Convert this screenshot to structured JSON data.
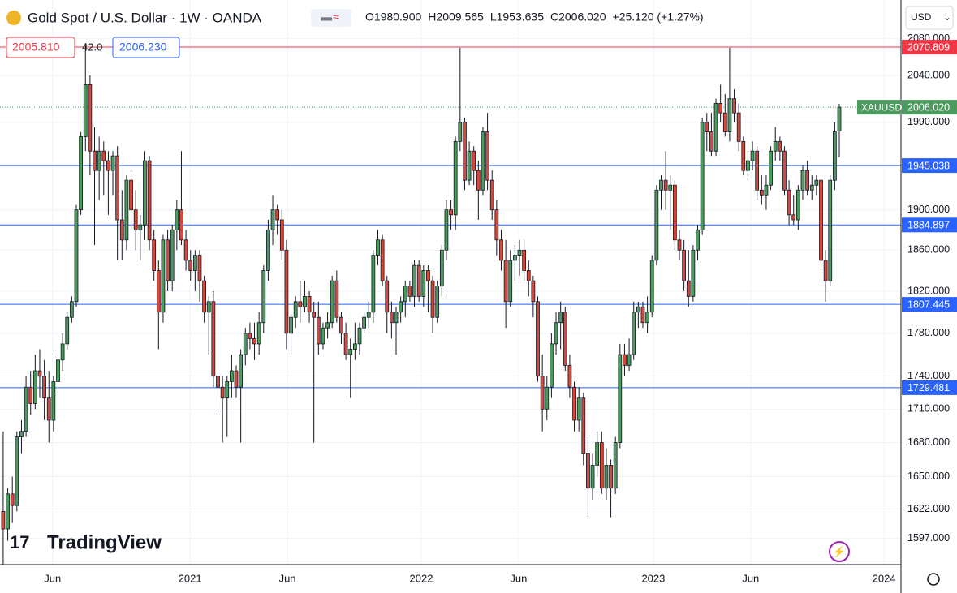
{
  "chart_data": {
    "type": "candlestick",
    "title": "Gold Spot / U.S. Dollar · 1W · OANDA",
    "ohlc_text": [
      "O1980.900",
      "H2009.565",
      "L1953.635",
      "C2006.020",
      "+25.120 (+1.27%)"
    ],
    "sell_price": "2005.810",
    "spread": "42.0",
    "buy_price": "2006.230",
    "currency": "USD",
    "brand": "TradingView",
    "symbol": "XAUUSD",
    "last_price": {
      "value": 2006.02,
      "label": "2006.020"
    },
    "log_scale": true,
    "grid": true,
    "up_color": "#4c9a5e",
    "down_color": "#d24a3e",
    "ylim": [
      1575,
      2123
    ],
    "yticks": [
      {
        "value": 1597,
        "label": "1597.000"
      },
      {
        "value": 1622,
        "label": "1622.000"
      },
      {
        "value": 1650,
        "label": "1650.000"
      },
      {
        "value": 1680,
        "label": "1680.000"
      },
      {
        "value": 1710,
        "label": "1710.000"
      },
      {
        "value": 1740,
        "label": "1740.000"
      },
      {
        "value": 1780,
        "label": "1780.000"
      },
      {
        "value": 1820,
        "label": "1820.000"
      },
      {
        "value": 1860,
        "label": "1860.000"
      },
      {
        "value": 1900,
        "label": "1900.000"
      },
      {
        "value": 1990,
        "label": "1990.000"
      },
      {
        "value": 2040,
        "label": "2040.000"
      },
      {
        "value": 2080,
        "label": "2080.000"
      }
    ],
    "xlim": [
      -0.7,
      196.5
    ],
    "xticks": [
      {
        "value": 10.8,
        "label": "Jun"
      },
      {
        "value": 40.9,
        "label": "2021"
      },
      {
        "value": 62.2,
        "label": "Jun"
      },
      {
        "value": 91.5,
        "label": "2022"
      },
      {
        "value": 112.8,
        "label": "Jun"
      },
      {
        "value": 142.3,
        "label": "2023"
      },
      {
        "value": 163.6,
        "label": "Jun"
      },
      {
        "value": 192.8,
        "label": "2024"
      }
    ],
    "hlines": [
      {
        "value": 2070.809,
        "label": "2070.809",
        "color": "#f23645"
      },
      {
        "value": 1945.038,
        "label": "1945.038",
        "color": "#2962ff"
      },
      {
        "value": 1884.897,
        "label": "1884.897",
        "color": "#2962ff"
      },
      {
        "value": 1807.445,
        "label": "1807.445",
        "color": "#2962ff"
      },
      {
        "value": 1729.481,
        "label": "1729.481",
        "color": "#2962ff"
      }
    ],
    "candles": [
      [
        1620,
        1690,
        1575,
        1605
      ],
      [
        1605,
        1640,
        1595,
        1635
      ],
      [
        1635,
        1650,
        1610,
        1625
      ],
      [
        1625,
        1690,
        1620,
        1685
      ],
      [
        1685,
        1700,
        1670,
        1690
      ],
      [
        1690,
        1740,
        1685,
        1730
      ],
      [
        1730,
        1745,
        1705,
        1715
      ],
      [
        1715,
        1760,
        1710,
        1745
      ],
      [
        1745,
        1765,
        1720,
        1740
      ],
      [
        1740,
        1755,
        1700,
        1720
      ],
      [
        1720,
        1745,
        1680,
        1700
      ],
      [
        1700,
        1740,
        1690,
        1735
      ],
      [
        1735,
        1760,
        1725,
        1755
      ],
      [
        1755,
        1780,
        1745,
        1770
      ],
      [
        1770,
        1800,
        1765,
        1795
      ],
      [
        1795,
        1815,
        1790,
        1810
      ],
      [
        1810,
        1905,
        1805,
        1900
      ],
      [
        1900,
        1980,
        1895,
        1975
      ],
      [
        1975,
        2075,
        1960,
        2030
      ],
      [
        2030,
        2040,
        1935,
        1960
      ],
      [
        1960,
        1985,
        1865,
        1940
      ],
      [
        1940,
        1975,
        1910,
        1960
      ],
      [
        1960,
        1970,
        1915,
        1950
      ],
      [
        1950,
        1960,
        1895,
        1940
      ],
      [
        1940,
        1960,
        1915,
        1955
      ],
      [
        1955,
        1965,
        1850,
        1890
      ],
      [
        1890,
        1920,
        1850,
        1870
      ],
      [
        1870,
        1935,
        1860,
        1930
      ],
      [
        1930,
        1940,
        1880,
        1900
      ],
      [
        1900,
        1920,
        1860,
        1880
      ],
      [
        1880,
        1895,
        1850,
        1885
      ],
      [
        1885,
        1960,
        1870,
        1950
      ],
      [
        1950,
        1955,
        1860,
        1870
      ],
      [
        1870,
        1880,
        1830,
        1840
      ],
      [
        1840,
        1850,
        1765,
        1800
      ],
      [
        1800,
        1875,
        1790,
        1870
      ],
      [
        1870,
        1880,
        1820,
        1830
      ],
      [
        1830,
        1885,
        1820,
        1880
      ],
      [
        1880,
        1910,
        1860,
        1900
      ],
      [
        1900,
        1960,
        1865,
        1870
      ],
      [
        1870,
        1880,
        1840,
        1850
      ],
      [
        1850,
        1860,
        1830,
        1840
      ],
      [
        1840,
        1860,
        1820,
        1855
      ],
      [
        1855,
        1860,
        1810,
        1830
      ],
      [
        1830,
        1835,
        1790,
        1800
      ],
      [
        1800,
        1815,
        1760,
        1810
      ],
      [
        1810,
        1820,
        1730,
        1740
      ],
      [
        1740,
        1745,
        1705,
        1730
      ],
      [
        1730,
        1740,
        1680,
        1720
      ],
      [
        1720,
        1740,
        1685,
        1735
      ],
      [
        1735,
        1760,
        1720,
        1745
      ],
      [
        1745,
        1750,
        1720,
        1730
      ],
      [
        1730,
        1765,
        1680,
        1760
      ],
      [
        1760,
        1785,
        1750,
        1780
      ],
      [
        1780,
        1790,
        1765,
        1775
      ],
      [
        1775,
        1790,
        1755,
        1770
      ],
      [
        1770,
        1800,
        1760,
        1790
      ],
      [
        1790,
        1845,
        1780,
        1840
      ],
      [
        1840,
        1890,
        1830,
        1880
      ],
      [
        1880,
        1915,
        1865,
        1900
      ],
      [
        1900,
        1905,
        1875,
        1890
      ],
      [
        1890,
        1900,
        1850,
        1860
      ],
      [
        1860,
        1870,
        1765,
        1780
      ],
      [
        1780,
        1800,
        1760,
        1795
      ],
      [
        1795,
        1815,
        1785,
        1810
      ],
      [
        1810,
        1830,
        1790,
        1805
      ],
      [
        1805,
        1830,
        1800,
        1815
      ],
      [
        1815,
        1820,
        1790,
        1800
      ],
      [
        1800,
        1810,
        1680,
        1795
      ],
      [
        1795,
        1810,
        1760,
        1770
      ],
      [
        1770,
        1790,
        1765,
        1785
      ],
      [
        1785,
        1800,
        1775,
        1790
      ],
      [
        1790,
        1835,
        1785,
        1830
      ],
      [
        1830,
        1840,
        1790,
        1795
      ],
      [
        1795,
        1800,
        1770,
        1780
      ],
      [
        1780,
        1790,
        1755,
        1760
      ],
      [
        1760,
        1775,
        1720,
        1765
      ],
      [
        1765,
        1790,
        1755,
        1770
      ],
      [
        1770,
        1790,
        1760,
        1785
      ],
      [
        1785,
        1800,
        1780,
        1795
      ],
      [
        1795,
        1810,
        1785,
        1800
      ],
      [
        1800,
        1860,
        1790,
        1855
      ],
      [
        1855,
        1880,
        1845,
        1870
      ],
      [
        1870,
        1875,
        1825,
        1830
      ],
      [
        1830,
        1835,
        1780,
        1800
      ],
      [
        1800,
        1810,
        1775,
        1790
      ],
      [
        1790,
        1805,
        1760,
        1800
      ],
      [
        1800,
        1815,
        1790,
        1810
      ],
      [
        1810,
        1830,
        1795,
        1825
      ],
      [
        1825,
        1830,
        1810,
        1815
      ],
      [
        1815,
        1850,
        1805,
        1845
      ],
      [
        1845,
        1850,
        1810,
        1815
      ],
      [
        1815,
        1845,
        1805,
        1840
      ],
      [
        1840,
        1845,
        1800,
        1830
      ],
      [
        1830,
        1835,
        1780,
        1795
      ],
      [
        1795,
        1830,
        1790,
        1825
      ],
      [
        1825,
        1865,
        1815,
        1860
      ],
      [
        1860,
        1910,
        1850,
        1900
      ],
      [
        1900,
        1910,
        1880,
        1895
      ],
      [
        1895,
        1975,
        1880,
        1970
      ],
      [
        1970,
        2070,
        1960,
        1990
      ],
      [
        1990,
        1995,
        1920,
        1930
      ],
      [
        1930,
        1970,
        1925,
        1960
      ],
      [
        1960,
        1965,
        1925,
        1940
      ],
      [
        1940,
        1950,
        1890,
        1920
      ],
      [
        1920,
        1985,
        1915,
        1980
      ],
      [
        1980,
        2000,
        1920,
        1930
      ],
      [
        1930,
        1940,
        1890,
        1900
      ],
      [
        1900,
        1910,
        1855,
        1870
      ],
      [
        1870,
        1880,
        1840,
        1850
      ],
      [
        1850,
        1870,
        1785,
        1810
      ],
      [
        1810,
        1860,
        1805,
        1850
      ],
      [
        1850,
        1865,
        1830,
        1855
      ],
      [
        1855,
        1870,
        1835,
        1860
      ],
      [
        1860,
        1870,
        1830,
        1840
      ],
      [
        1840,
        1850,
        1815,
        1830
      ],
      [
        1830,
        1835,
        1795,
        1810
      ],
      [
        1810,
        1815,
        1735,
        1740
      ],
      [
        1740,
        1760,
        1690,
        1710
      ],
      [
        1710,
        1740,
        1700,
        1730
      ],
      [
        1730,
        1780,
        1720,
        1770
      ],
      [
        1770,
        1800,
        1760,
        1790
      ],
      [
        1790,
        1810,
        1765,
        1800
      ],
      [
        1800,
        1805,
        1745,
        1750
      ],
      [
        1750,
        1760,
        1720,
        1730
      ],
      [
        1730,
        1735,
        1690,
        1700
      ],
      [
        1700,
        1730,
        1690,
        1720
      ],
      [
        1720,
        1725,
        1660,
        1670
      ],
      [
        1670,
        1685,
        1615,
        1640
      ],
      [
        1640,
        1670,
        1630,
        1660
      ],
      [
        1660,
        1690,
        1650,
        1680
      ],
      [
        1680,
        1690,
        1635,
        1640
      ],
      [
        1640,
        1675,
        1630,
        1660
      ],
      [
        1660,
        1665,
        1615,
        1640
      ],
      [
        1640,
        1685,
        1635,
        1680
      ],
      [
        1680,
        1770,
        1675,
        1760
      ],
      [
        1760,
        1770,
        1740,
        1750
      ],
      [
        1750,
        1775,
        1745,
        1760
      ],
      [
        1760,
        1810,
        1755,
        1800
      ],
      [
        1800,
        1810,
        1785,
        1805
      ],
      [
        1805,
        1810,
        1785,
        1790
      ],
      [
        1790,
        1815,
        1780,
        1800
      ],
      [
        1800,
        1855,
        1795,
        1850
      ],
      [
        1850,
        1925,
        1845,
        1920
      ],
      [
        1920,
        1935,
        1900,
        1930
      ],
      [
        1930,
        1960,
        1900,
        1920
      ],
      [
        1920,
        1935,
        1880,
        1925
      ],
      [
        1925,
        1930,
        1860,
        1870
      ],
      [
        1870,
        1880,
        1850,
        1860
      ],
      [
        1860,
        1870,
        1820,
        1830
      ],
      [
        1830,
        1860,
        1805,
        1815
      ],
      [
        1815,
        1865,
        1810,
        1860
      ],
      [
        1860,
        1885,
        1850,
        1880
      ],
      [
        1880,
        1995,
        1875,
        1990
      ],
      [
        1990,
        2000,
        1960,
        1980
      ],
      [
        1980,
        2000,
        1955,
        1960
      ],
      [
        1960,
        2015,
        1955,
        2010
      ],
      [
        2010,
        2030,
        1990,
        2000
      ],
      [
        2000,
        2020,
        1975,
        1980
      ],
      [
        1980,
        2070,
        1970,
        2015
      ],
      [
        2015,
        2025,
        1990,
        2000
      ],
      [
        2000,
        2010,
        1960,
        1970
      ],
      [
        1970,
        1975,
        1935,
        1940
      ],
      [
        1940,
        1960,
        1930,
        1950
      ],
      [
        1950,
        1970,
        1940,
        1960
      ],
      [
        1960,
        1965,
        1910,
        1920
      ],
      [
        1920,
        1935,
        1905,
        1915
      ],
      [
        1915,
        1935,
        1900,
        1925
      ],
      [
        1925,
        1965,
        1920,
        1960
      ],
      [
        1960,
        1985,
        1950,
        1970
      ],
      [
        1970,
        1975,
        1950,
        1960
      ],
      [
        1960,
        1965,
        1915,
        1920
      ],
      [
        1920,
        1930,
        1885,
        1895
      ],
      [
        1895,
        1915,
        1885,
        1890
      ],
      [
        1890,
        1925,
        1880,
        1920
      ],
      [
        1920,
        1945,
        1910,
        1940
      ],
      [
        1940,
        1950,
        1915,
        1920
      ],
      [
        1920,
        1935,
        1910,
        1925
      ],
      [
        1925,
        1935,
        1915,
        1930
      ],
      [
        1930,
        1935,
        1840,
        1850
      ],
      [
        1850,
        1860,
        1810,
        1830
      ],
      [
        1830,
        1935,
        1825,
        1930
      ],
      [
        1930,
        1990,
        1920,
        1980
      ],
      [
        1980.9,
        2009.565,
        1953.635,
        2006.02
      ]
    ]
  }
}
